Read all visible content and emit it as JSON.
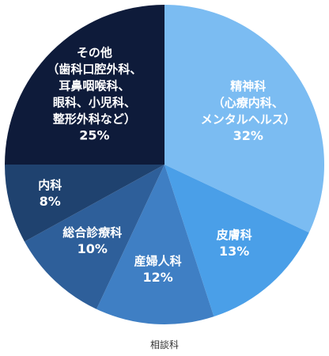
{
  "chart_data": {
    "type": "pie",
    "xlabel": "相談科",
    "slices": [
      {
        "label_lines": [
          "精神科",
          "（心療内科、",
          "メンタルヘルス）"
        ],
        "percent_text": "32%",
        "value": 32,
        "color": "#7bbcf2"
      },
      {
        "label_lines": [
          "皮膚科"
        ],
        "percent_text": "13%",
        "value": 13,
        "color": "#4a9fe8"
      },
      {
        "label_lines": [
          "産婦人科"
        ],
        "percent_text": "12%",
        "value": 12,
        "color": "#3f7fc4"
      },
      {
        "label_lines": [
          "総合診療科"
        ],
        "percent_text": "10%",
        "value": 10,
        "color": "#2e5f9a"
      },
      {
        "label_lines": [
          "内科"
        ],
        "percent_text": "8%",
        "value": 8,
        "color": "#1f426f"
      },
      {
        "label_lines": [
          "その他",
          "（歯科口腔外科、",
          "耳鼻咽喉科、",
          "眼科、小児科、",
          "整形外科など）"
        ],
        "percent_text": "25%",
        "value": 25,
        "color": "#0e1b3a"
      }
    ]
  }
}
